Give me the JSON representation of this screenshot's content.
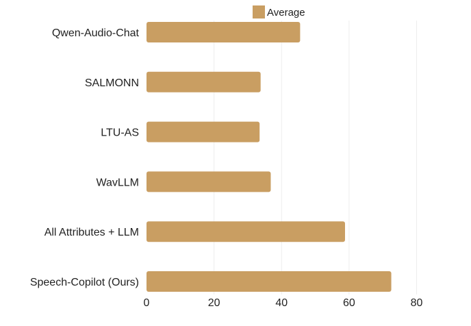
{
  "chart_data": {
    "type": "bar",
    "orientation": "horizontal",
    "categories": [
      "Qwen-Audio-Chat",
      "SALMONN",
      "LTU-AS",
      "WavLLM",
      "All Attributes + LLM",
      "Speech-Copilot (Ours)"
    ],
    "series": [
      {
        "name": "Average",
        "values": [
          45.5,
          33.8,
          33.5,
          36.8,
          58.8,
          72.5
        ]
      }
    ],
    "x_ticks": [
      0,
      20,
      40,
      60,
      80
    ],
    "xlim": [
      0,
      88
    ],
    "grid": "vertical",
    "legend_position": "top",
    "colors": {
      "bar": "#C99E62",
      "grid": "#EDEDED",
      "text": "#222222"
    }
  }
}
